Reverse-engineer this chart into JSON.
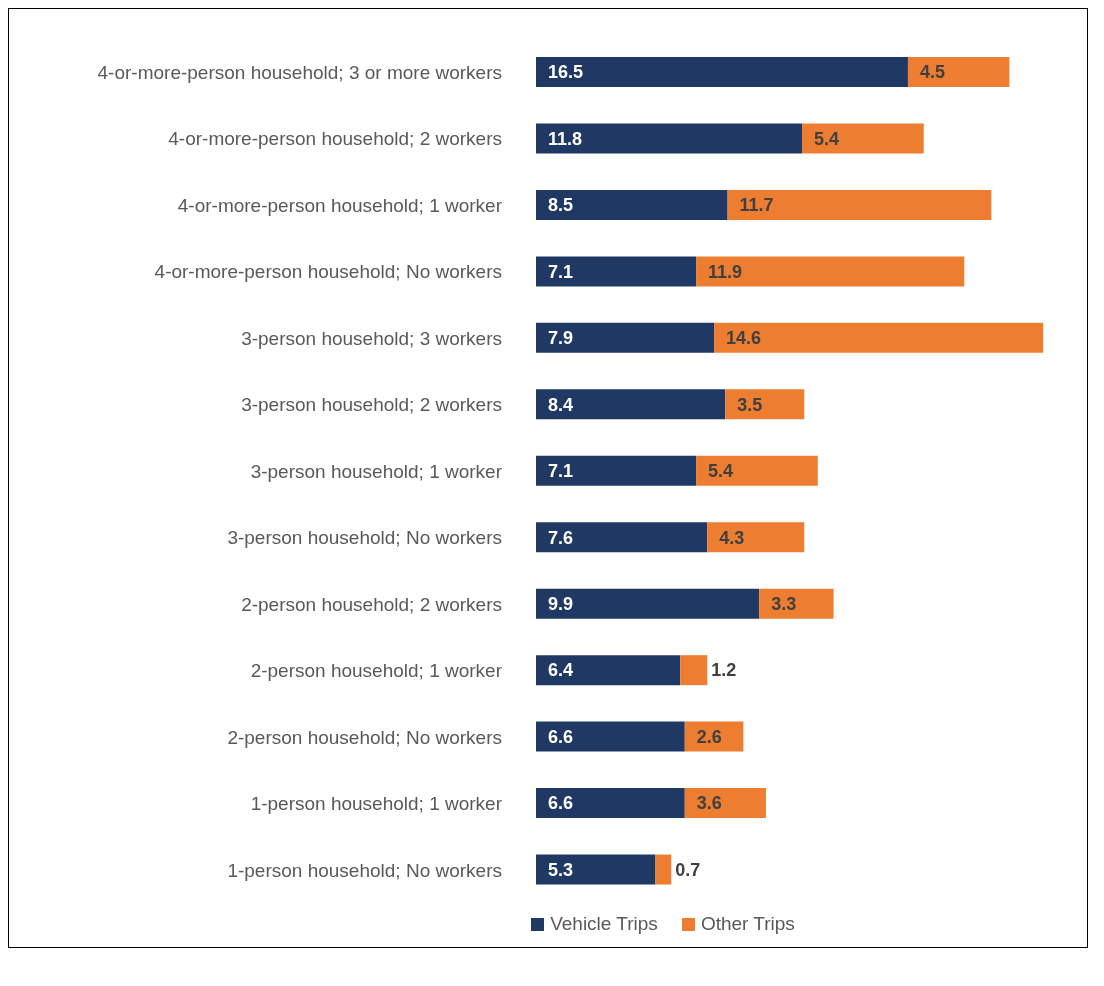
{
  "chart_data": {
    "type": "bar",
    "orientation": "horizontal",
    "stacked": true,
    "categories": [
      "4-or-more-person household; 3 or more workers",
      "4-or-more-person household; 2 workers",
      "4-or-more-person household; 1 worker",
      "4-or-more-person household; No workers",
      "3-person household; 3 workers",
      "3-person household; 2 workers",
      "3-person household; 1 worker",
      "3-person household; No workers",
      "2-person household; 2 workers",
      "2-person household; 1 worker",
      "2-person household; No workers",
      "1-person household; 1 worker",
      "1-person household; No workers"
    ],
    "series": [
      {
        "name": "Vehicle Trips",
        "color": "#203864",
        "values": [
          16.5,
          11.8,
          8.5,
          7.1,
          7.9,
          8.4,
          7.1,
          7.6,
          9.9,
          6.4,
          6.6,
          6.6,
          5.3
        ]
      },
      {
        "name": "Other Trips",
        "color": "#ed7d31",
        "values": [
          4.5,
          5.4,
          11.7,
          11.9,
          14.6,
          3.5,
          5.4,
          4.3,
          3.3,
          1.2,
          2.6,
          3.6,
          0.7
        ]
      }
    ],
    "tick_labels": "y",
    "legend": "bottom",
    "data_labels": true
  }
}
